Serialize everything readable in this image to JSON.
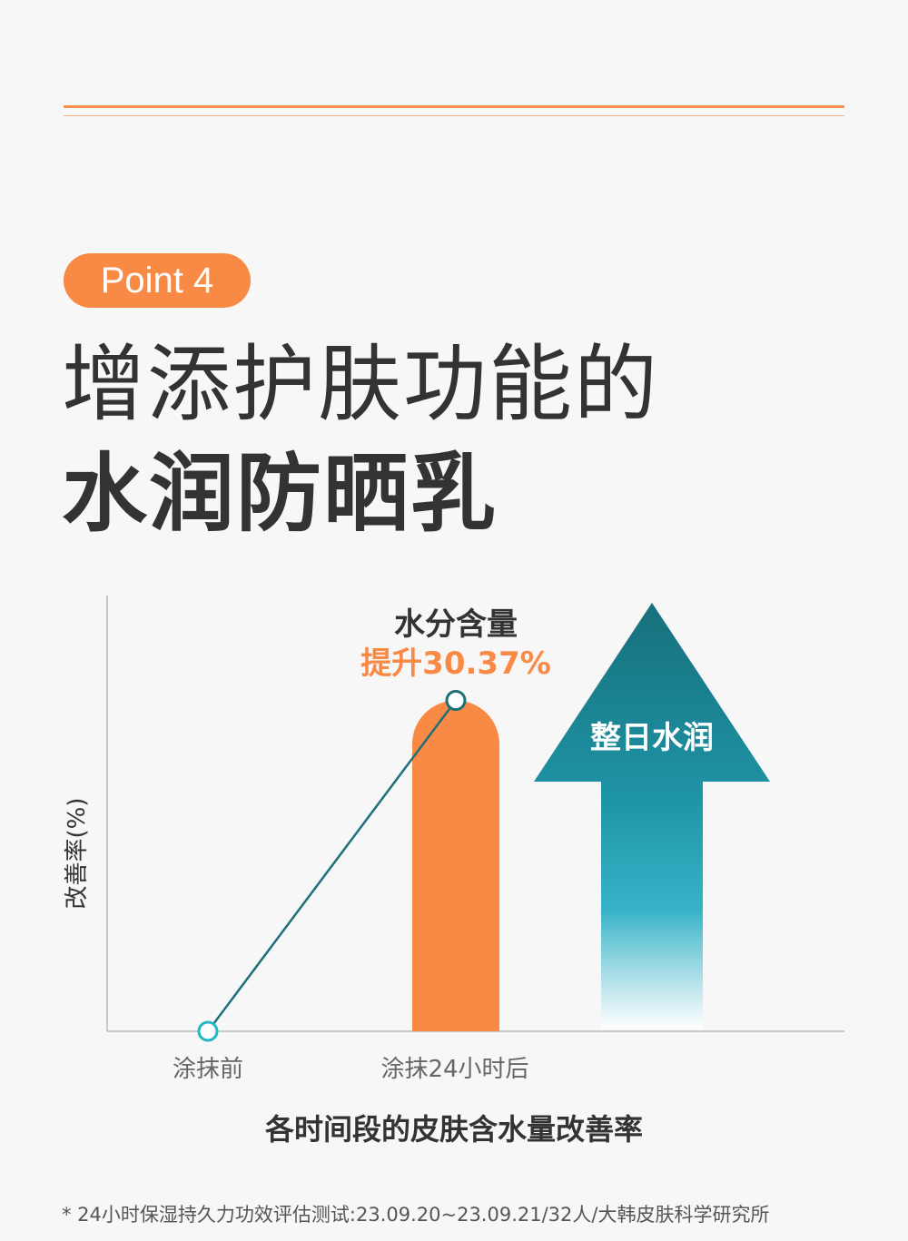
{
  "badge": {
    "label": "Point 4"
  },
  "headline": {
    "line1": "增添护肤功能的",
    "line2": "水润防晒乳"
  },
  "colors": {
    "accent": "#f98a45",
    "line": "#1f6f78",
    "teal": "#1e93a6",
    "point_ring": "#23b6c9"
  },
  "chart_data": {
    "type": "bar",
    "categories": [
      "涂抹前",
      "涂抹24小时后"
    ],
    "values": [
      0,
      30.37
    ],
    "ylabel": "改善率(%)",
    "xlabel": "各时间段的皮肤含水量改善率",
    "ylim": [
      0,
      40
    ],
    "grid": false,
    "annotation": {
      "label": "水分含量",
      "value": "提升30.37%"
    },
    "arrow_label": "整日水润"
  },
  "footnote": "* 24小时保湿持久力功效评估测试:23.09.20~23.09.21/32人/大韩皮肤科学研究所"
}
